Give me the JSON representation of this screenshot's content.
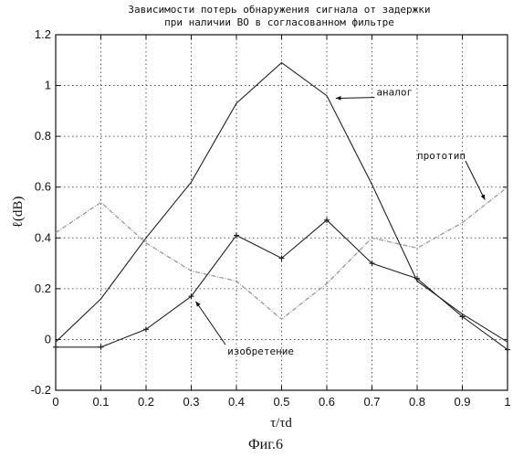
{
  "chart_data": {
    "type": "line",
    "title": [
      "Зависимости потерь обнаружения сигнала от задержки",
      "при наличии ВО в согласованном фильтре"
    ],
    "xlabel": "τ/τd",
    "ylabel": "ℓ(dB)",
    "xlim": [
      0,
      1
    ],
    "ylim": [
      -0.2,
      1.2
    ],
    "x_ticks": [
      "0",
      "0.1",
      "0.2",
      "0.3",
      "0.4",
      "0.5",
      "0.6",
      "0.7",
      "0.8",
      "0.9",
      "1"
    ],
    "y_ticks": [
      "-0.2",
      "0",
      "0.2",
      "0.4",
      "0.6",
      "0.8",
      "1",
      "1.2"
    ],
    "grid": true,
    "series": [
      {
        "name": "аналог",
        "color": "#222222",
        "marker": "none",
        "x": [
          0,
          0.1,
          0.2,
          0.3,
          0.4,
          0.5,
          0.6,
          0.7,
          0.8,
          0.9,
          1
        ],
        "y": [
          -0.01,
          0.16,
          0.4,
          0.62,
          0.93,
          1.09,
          0.96,
          0.61,
          0.23,
          0.1,
          -0.01
        ]
      },
      {
        "name": "прототип",
        "color": "#9a9a9a",
        "marker": "none",
        "x": [
          0,
          0.1,
          0.2,
          0.3,
          0.4,
          0.5,
          0.6,
          0.7,
          0.8,
          0.9,
          1
        ],
        "y": [
          0.42,
          0.54,
          0.38,
          0.27,
          0.23,
          0.08,
          0.22,
          0.4,
          0.36,
          0.46,
          0.6
        ]
      },
      {
        "name": "изобретение",
        "color": "#222222",
        "marker": "+",
        "x": [
          0,
          0.1,
          0.2,
          0.3,
          0.4,
          0.5,
          0.6,
          0.7,
          0.8,
          0.9,
          1
        ],
        "y": [
          -0.03,
          -0.03,
          0.04,
          0.17,
          0.41,
          0.32,
          0.47,
          0.3,
          0.24,
          0.09,
          -0.04
        ]
      }
    ],
    "annotations": [
      {
        "text": "аналог",
        "x": 0.71,
        "y": 0.96,
        "point_x": 0.62,
        "point_y": 0.95
      },
      {
        "text": "прототип",
        "x": 0.8,
        "y": 0.71,
        "point_x": 0.95,
        "point_y": 0.55
      },
      {
        "text": "изобретение",
        "x": 0.38,
        "y": -0.06,
        "point_x": 0.31,
        "point_y": 0.15
      }
    ]
  },
  "caption": "Фиг.6"
}
